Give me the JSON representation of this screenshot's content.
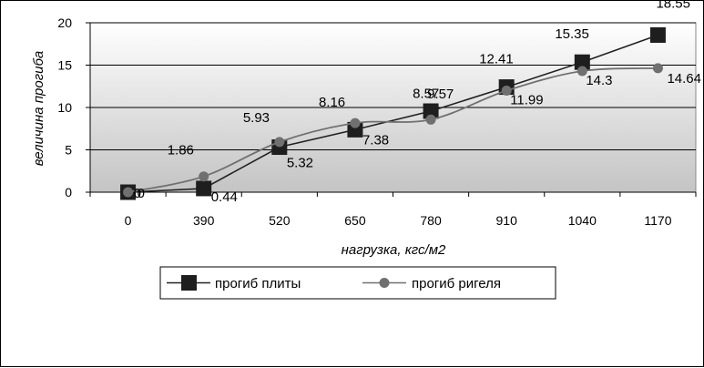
{
  "chart_data": {
    "type": "line",
    "title": "",
    "xlabel": "нагрузка, кгс/м2",
    "ylabel": "величина прогиба",
    "categories": [
      "0",
      "390",
      "520",
      "650",
      "780",
      "910",
      "1040",
      "1170"
    ],
    "ylim": [
      0,
      20
    ],
    "yticks": [
      "0",
      "5",
      "10",
      "15",
      "20"
    ],
    "grid": true,
    "legend_position": "bottom",
    "series": [
      {
        "name": "прогиб плиты",
        "marker": "square",
        "color": "#222222",
        "values": [
          0,
          0.44,
          5.32,
          7.38,
          9.57,
          12.41,
          15.35,
          18.55
        ],
        "labels": [
          "0",
          "0.44",
          "5.32",
          "7.38",
          "9.57",
          "12.41",
          "15.35",
          "18.55"
        ]
      },
      {
        "name": "прогиб ригеля",
        "marker": "circle",
        "color": "#707070",
        "values": [
          0,
          1.86,
          5.93,
          8.16,
          8.57,
          11.99,
          14.3,
          14.64
        ],
        "labels": [
          "0",
          "1.86",
          "5.93",
          "8.16",
          "8.57",
          "11.99",
          "14.3",
          "14.64"
        ]
      }
    ]
  }
}
